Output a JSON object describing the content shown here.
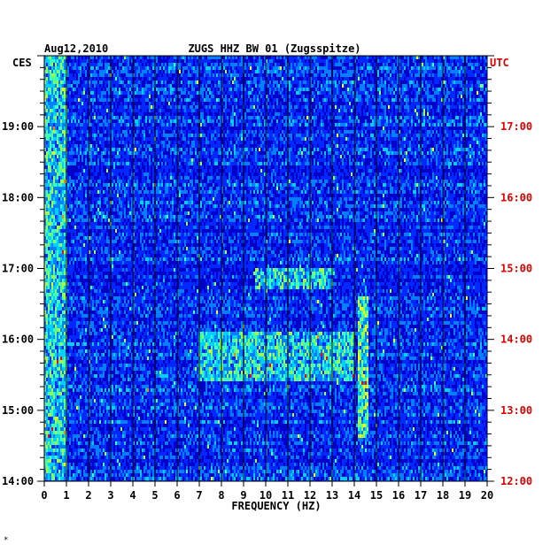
{
  "chart_data": {
    "type": "heatmap",
    "date": "Aug12,2010",
    "title": "ZUGS HHZ BW 01 (Zugsspitze)",
    "xlabel": "FREQUENCY (HZ)",
    "xlim": [
      0,
      20
    ],
    "x_ticks": [
      "0",
      "1",
      "2",
      "3",
      "4",
      "5",
      "6",
      "7",
      "8",
      "9",
      "10",
      "11",
      "12",
      "13",
      "14",
      "15",
      "16",
      "17",
      "18",
      "19",
      "20"
    ],
    "left_axis": {
      "label": "CES",
      "ticks": [
        "14:00",
        "15:00",
        "16:00",
        "17:00",
        "18:00",
        "19:00"
      ],
      "range_hours": [
        14,
        20
      ]
    },
    "right_axis": {
      "label": "UTC",
      "ticks": [
        "12:00",
        "13:00",
        "14:00",
        "15:00",
        "16:00",
        "17:00"
      ],
      "range_hours": [
        12,
        18
      ]
    },
    "colormap": [
      "#000080",
      "#0000c8",
      "#0028ff",
      "#0080ff",
      "#00d0ff",
      "#40ffb0",
      "#a0ff40",
      "#ffff00",
      "#ff8000",
      "#ff0000"
    ],
    "features": [
      {
        "desc": "microseism",
        "freq": [
          0,
          1
        ],
        "hours": [
          14,
          20
        ],
        "level": 0.6
      },
      {
        "desc": "line",
        "freq": [
          14.2,
          14.6
        ],
        "hours": [
          14.6,
          16.6
        ],
        "level": 0.7
      },
      {
        "desc": "burst",
        "freq": [
          7,
          14
        ],
        "hours": [
          15.4,
          16.1
        ],
        "level": 0.6
      },
      {
        "desc": "burst",
        "freq": [
          9.5,
          13
        ],
        "hours": [
          16.7,
          17.0
        ],
        "level": 0.6
      }
    ]
  },
  "footnote": "*"
}
